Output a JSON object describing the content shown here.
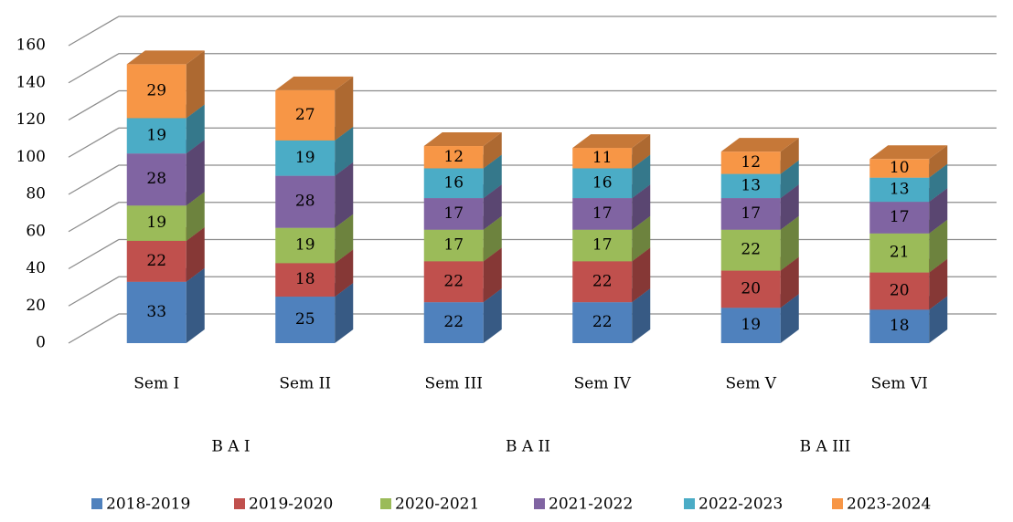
{
  "chart_data": {
    "type": "bar3d_stacked",
    "categories": [
      "Sem I",
      "Sem II",
      "Sem III",
      "Sem IV",
      "Sem V",
      "Sem VI"
    ],
    "groups": [
      "B A I",
      "B A II",
      "B A III"
    ],
    "series": [
      {
        "name": "2018-2019",
        "color": "#4f81bd",
        "values": [
          33,
          25,
          22,
          22,
          19,
          18
        ]
      },
      {
        "name": "2019-2020",
        "color": "#c0504d",
        "values": [
          22,
          18,
          22,
          22,
          20,
          20
        ]
      },
      {
        "name": "2020-2021",
        "color": "#9bbb59",
        "values": [
          19,
          19,
          17,
          17,
          22,
          21
        ]
      },
      {
        "name": "2021-2022",
        "color": "#8064a2",
        "values": [
          28,
          28,
          17,
          17,
          17,
          17
        ]
      },
      {
        "name": "2022-2023",
        "color": "#4bacc6",
        "values": [
          19,
          19,
          16,
          16,
          13,
          13
        ]
      },
      {
        "name": "2023-2024",
        "color": "#f79646",
        "values": [
          29,
          27,
          12,
          11,
          12,
          10
        ]
      }
    ],
    "ylim": [
      0,
      160
    ],
    "yticks": [
      0,
      20,
      40,
      60,
      80,
      100,
      120,
      140,
      160
    ],
    "grid": true,
    "legend": "bottom"
  }
}
